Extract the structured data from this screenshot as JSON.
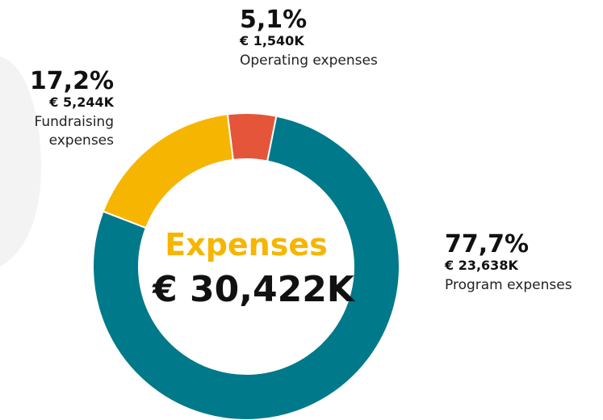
{
  "chart_data": {
    "type": "donut",
    "center_title": "Expenses",
    "center_value": "€ 30,422K",
    "categories": [
      "Operating expenses",
      "Program expenses",
      "Fundraising expenses"
    ],
    "values": [
      5.1,
      77.7,
      17.2
    ],
    "value_labels": [
      "5,1%",
      "77,7%",
      "17,2%"
    ],
    "amount_labels": [
      "€ 1,540K",
      "€ 23,638K",
      "€ 5,244K"
    ],
    "colors": [
      "#e5553a",
      "#00798a",
      "#f6b500"
    ]
  }
}
